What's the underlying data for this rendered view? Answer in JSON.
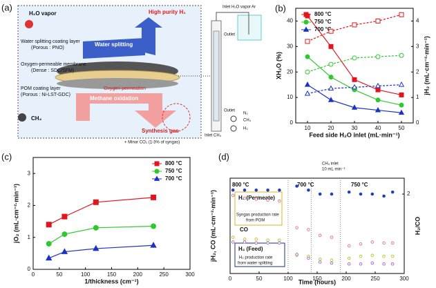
{
  "panel_labels": [
    "(a)",
    "(b)",
    "(c)",
    "(d)"
  ],
  "diagram": {
    "labels": [
      "H₂O vapor",
      "High purity H₂",
      "Water splitting",
      "Water splitting coating layer",
      "(Porous : PNO)",
      "Oxygen-permeable membrane",
      "(Dense : SDC/SFM)",
      "Oxygen permeation",
      "POM coating layer",
      "(Porous : Ni-LST-GDC)",
      "Methane oxidation",
      "CH₄",
      "Synthesis gas",
      "+ Minor CO₂ (1-3% of syngas)"
    ],
    "reactor_labels": [
      "Inlet H₂O vapor",
      "Ar",
      "Outlet",
      "Outlet",
      "Inlet CH₄",
      "N₂",
      "CH₄",
      "H₂"
    ]
  },
  "chart_data": [
    {
      "type": "line",
      "x_label": "Feed side H₂O inlet (mL·min⁻¹)",
      "y_label": "XH₂O (%)",
      "y2_label": "jH₂ (mL·cm⁻²·min⁻¹)",
      "x": [
        10,
        20,
        30,
        40,
        50
      ],
      "xlim": [
        5,
        55
      ],
      "xticks": [
        10,
        20,
        30,
        40,
        50
      ],
      "ylim": [
        0,
        45
      ],
      "yticks": [
        0,
        10,
        20,
        30,
        40
      ],
      "y2lim": [
        0,
        4.5
      ],
      "y2ticks": [
        0,
        1,
        2,
        3,
        4
      ],
      "legend": "upper left",
      "series": [
        {
          "name": "800 °C",
          "color": "#e3141c",
          "marker": "square",
          "open": false,
          "line_style": "solid",
          "values": [
            42,
            30,
            17,
            13,
            11
          ]
        },
        {
          "name": "750 °C",
          "color": "#2fc82f",
          "marker": "circle",
          "open": false,
          "line_style": "solid",
          "values": [
            26,
            18,
            13,
            9,
            7
          ]
        },
        {
          "name": "700 °C",
          "color": "#1a33c4",
          "marker": "triangle",
          "open": false,
          "line_style": "solid",
          "values": [
            15,
            9,
            6,
            5,
            4
          ]
        },
        {
          "name": "800 °C",
          "color": "#e3141c",
          "marker": "square",
          "open": true,
          "line_style": "dashed",
          "axis": "y2",
          "values": [
            3.2,
            3.6,
            3.85,
            4.0,
            4.25
          ]
        },
        {
          "name": "750 °C",
          "color": "#2fc82f",
          "marker": "circle",
          "open": true,
          "line_style": "dashed",
          "axis": "y2",
          "values": [
            2.0,
            2.3,
            2.55,
            2.6,
            2.65
          ]
        },
        {
          "name": "700 °C",
          "color": "#1a33c4",
          "marker": "triangle",
          "open": true,
          "line_style": "dashed",
          "axis": "y2",
          "values": [
            1.15,
            1.35,
            1.4,
            1.45,
            1.5
          ]
        }
      ]
    },
    {
      "type": "scatter",
      "x_label": "1/thickness (cm⁻¹)",
      "y_label": "jO₂ (mL·cm⁻²·min⁻¹)",
      "x": [
        30,
        60,
        120,
        230
      ],
      "xlim": [
        0,
        300
      ],
      "xticks": [
        0,
        50,
        100,
        150,
        200,
        250,
        300
      ],
      "ylim": [
        0,
        3.5
      ],
      "yticks": [
        0,
        1,
        2,
        3
      ],
      "legend": "upper right",
      "series": [
        {
          "name": "800 °C",
          "color": "#e3141c",
          "marker": "square",
          "open": false,
          "line_style": "solid",
          "values": [
            1.4,
            1.65,
            2.1,
            2.25
          ]
        },
        {
          "name": "750 °C",
          "color": "#2fc82f",
          "marker": "circle",
          "open": false,
          "line_style": "solid",
          "values": [
            0.8,
            1.1,
            1.3,
            1.35
          ]
        },
        {
          "name": "700 °C",
          "color": "#1a33c4",
          "marker": "triangle",
          "open": false,
          "line_style": "solid",
          "values": [
            0.35,
            0.55,
            0.65,
            0.75
          ]
        }
      ]
    },
    {
      "type": "line",
      "x_label": "Time (hours)",
      "y_label": "jH₂, CO (mL·cm⁻²·min⁻¹)",
      "y2_label": "H₂/CO",
      "x": [
        5,
        25,
        45,
        65,
        85,
        115,
        135,
        155,
        175,
        205,
        225,
        245,
        265,
        280
      ],
      "xlim": [
        0,
        300
      ],
      "xticks": [
        0,
        50,
        100,
        150,
        200,
        250,
        300
      ],
      "ylim": [
        0,
        10
      ],
      "y2lim": [
        0,
        2.4
      ],
      "y2ticks": [
        2
      ],
      "phase_boundaries": [
        100,
        140,
        190
      ],
      "annotations": [
        "800 °C",
        "700 °C",
        "750 °C",
        "CH₄ inlet",
        "10 mL·min⁻¹",
        "H₂ (Permeate)",
        "Syngas production rate",
        "from POM",
        "CO",
        "H₂ (Feed)",
        "H₂ production rate",
        "from water splitting"
      ],
      "series": [
        {
          "name": "H₂ (Permeate)",
          "color": "#e07a9a",
          "marker": "circle",
          "open": true,
          "line_style": "none",
          "values": [
            8.2,
            7.9,
            7.8,
            7.7,
            7.6,
            4.8,
            4.6,
            4.0,
            3.8,
            2.9,
            3.1,
            3.3,
            3.2,
            3.2
          ]
        },
        {
          "name": "CO",
          "color": "#b8cc3a",
          "marker": "circle",
          "open": true,
          "line_style": "none",
          "values": [
            3.8,
            3.6,
            3.6,
            3.5,
            3.5,
            1.9,
            1.8,
            1.5,
            1.4,
            1.6,
            1.8,
            1.9,
            1.8,
            1.8
          ]
        },
        {
          "name": "H₂ (Feed)",
          "color": "#b070c0",
          "marker": "circle",
          "open": true,
          "line_style": "none",
          "values": [
            3.3,
            3.3,
            3.2,
            3.2,
            3.2,
            2.0,
            1.6,
            1.2,
            1.1,
            1.0,
            1.0,
            1.1,
            1.0,
            1.0
          ]
        },
        {
          "name": "H₂/CO",
          "color": "#1f3fc0",
          "marker": "circle",
          "open": false,
          "line_style": "none",
          "axis": "y2",
          "values": [
            2.1,
            2.1,
            2.1,
            2.1,
            2.1,
            2.2,
            2.1,
            2.0,
            2.0,
            2.05,
            2.0,
            2.0,
            1.95,
            2.05
          ]
        }
      ]
    }
  ]
}
